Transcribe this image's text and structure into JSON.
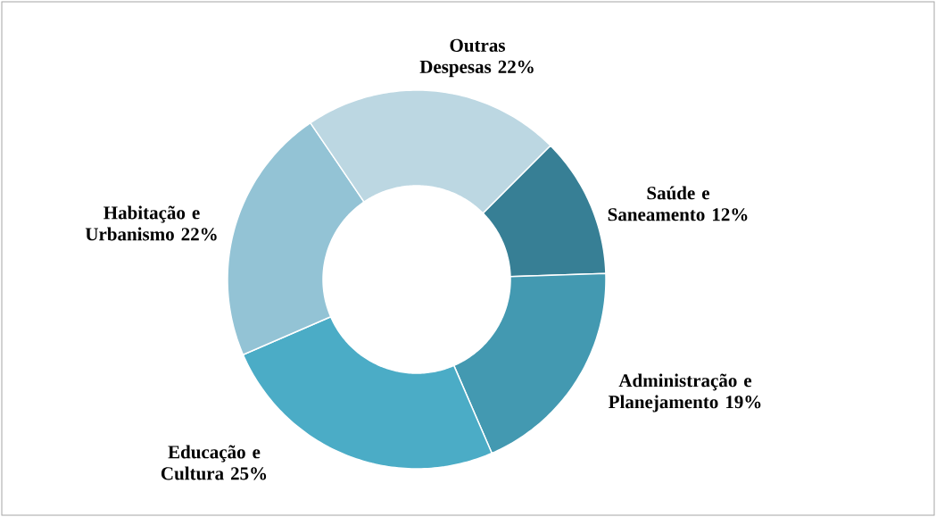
{
  "chart_data": {
    "type": "donut",
    "categories": [
      "Saúde e Saneamento",
      "Administração e Planejamento",
      "Educação e Cultura",
      "Habitação e Urbanismo",
      "Outras Despesas"
    ],
    "values": [
      12,
      19,
      25,
      22,
      22
    ],
    "value_labels": [
      "12%",
      "19%",
      "25%",
      "22%",
      "22%"
    ],
    "colors": [
      "#377f95",
      "#4399b1",
      "#4bacc6",
      "#93c3d5",
      "#bcd7e2"
    ]
  }
}
